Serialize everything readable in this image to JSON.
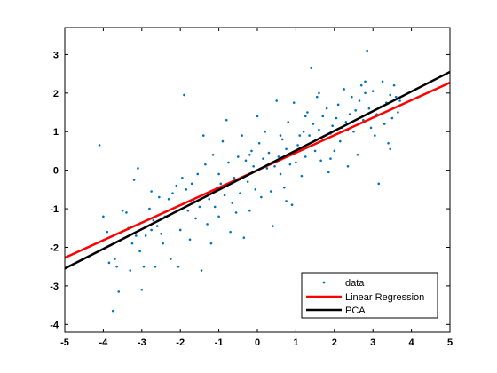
{
  "chart_data": {
    "type": "scatter",
    "title": "",
    "xlabel": "",
    "ylabel": "",
    "xlim": [
      -5,
      5
    ],
    "ylim": [
      -4.2,
      3.7
    ],
    "xticks": [
      -5,
      -4,
      -3,
      -2,
      -1,
      0,
      1,
      2,
      3,
      4,
      5
    ],
    "yticks": [
      -4,
      -3,
      -2,
      -1,
      0,
      1,
      2,
      3
    ],
    "grid": false,
    "legend_position": "bottom-right",
    "series": [
      {
        "name": "data",
        "kind": "scatter",
        "color": "#0072BD",
        "points": [
          [
            -4.1,
            0.65
          ],
          [
            -4.0,
            -1.2
          ],
          [
            -3.9,
            -1.6
          ],
          [
            -3.85,
            -2.4
          ],
          [
            -3.75,
            -3.65
          ],
          [
            -3.7,
            -2.3
          ],
          [
            -3.65,
            -2.5
          ],
          [
            -3.6,
            -3.15
          ],
          [
            -3.5,
            -1.05
          ],
          [
            -3.4,
            -1.1
          ],
          [
            -3.35,
            -1.5
          ],
          [
            -3.3,
            -2.6
          ],
          [
            -3.25,
            -1.9
          ],
          [
            -3.2,
            -0.25
          ],
          [
            -3.15,
            -1.7
          ],
          [
            -3.1,
            0.05
          ],
          [
            -3.05,
            -2.1
          ],
          [
            -3.0,
            -3.1
          ],
          [
            -2.95,
            -2.5
          ],
          [
            -2.9,
            -1.7
          ],
          [
            -2.8,
            -1.0
          ],
          [
            -2.75,
            -1.55
          ],
          [
            -2.7,
            -1.3
          ],
          [
            -2.65,
            -2.5
          ],
          [
            -2.6,
            -1.45
          ],
          [
            -2.55,
            -0.7
          ],
          [
            -2.5,
            -1.65
          ],
          [
            -2.45,
            -1.9
          ],
          [
            -2.4,
            -1.2
          ],
          [
            -2.3,
            -0.75
          ],
          [
            -2.25,
            -2.3
          ],
          [
            -2.2,
            -0.6
          ],
          [
            -2.1,
            -0.4
          ],
          [
            -2.05,
            -2.5
          ],
          [
            -2.0,
            -1.55
          ],
          [
            -1.95,
            -0.2
          ],
          [
            -1.9,
            1.95
          ],
          [
            -1.85,
            -0.5
          ],
          [
            -1.8,
            -1.05
          ],
          [
            -1.75,
            -1.8
          ],
          [
            -1.7,
            -0.35
          ],
          [
            -1.65,
            -0.8
          ],
          [
            -1.6,
            -1.25
          ],
          [
            -1.55,
            -0.1
          ],
          [
            -1.5,
            -0.95
          ],
          [
            -1.45,
            -2.6
          ],
          [
            -1.4,
            0.9
          ],
          [
            -1.35,
            0.15
          ],
          [
            -1.3,
            -1.4
          ],
          [
            -1.25,
            -0.75
          ],
          [
            -1.2,
            -1.9
          ],
          [
            -1.15,
            0.4
          ],
          [
            -1.1,
            -0.95
          ],
          [
            -1.05,
            -0.45
          ],
          [
            -1.0,
            -1.2
          ],
          [
            -0.95,
            -0.35
          ],
          [
            -0.9,
            0.75
          ],
          [
            -0.85,
            -0.65
          ],
          [
            -0.8,
            1.3
          ],
          [
            -0.75,
            0.2
          ],
          [
            -0.7,
            -1.6
          ],
          [
            -0.65,
            -0.85
          ],
          [
            -0.6,
            -0.2
          ],
          [
            -0.55,
            -1.1
          ],
          [
            -0.5,
            0.35
          ],
          [
            -0.45,
            -0.6
          ],
          [
            -0.4,
            0.9
          ],
          [
            -0.35,
            -1.75
          ],
          [
            -0.3,
            0.25
          ],
          [
            -0.25,
            -0.3
          ],
          [
            -0.2,
            -1.05
          ],
          [
            -0.15,
            0.5
          ],
          [
            -0.1,
            0.1
          ],
          [
            -0.05,
            -0.5
          ],
          [
            0.0,
            1.4
          ],
          [
            0.05,
            0.7
          ],
          [
            0.1,
            -0.7
          ],
          [
            0.15,
            0.3
          ],
          [
            0.2,
            1.0
          ],
          [
            0.25,
            0.05
          ],
          [
            0.3,
            0.45
          ],
          [
            0.35,
            -0.55
          ],
          [
            0.4,
            -1.45
          ],
          [
            0.45,
            0.1
          ],
          [
            0.5,
            1.8
          ],
          [
            0.55,
            0.35
          ],
          [
            0.6,
            -0.1
          ],
          [
            0.65,
            0.8
          ],
          [
            0.7,
            -0.45
          ],
          [
            0.75,
            0.55
          ],
          [
            0.8,
            1.25
          ],
          [
            0.85,
            0.15
          ],
          [
            0.9,
            -0.9
          ],
          [
            0.95,
            1.75
          ],
          [
            1.0,
            0.2
          ],
          [
            1.05,
            0.65
          ],
          [
            1.1,
            0.9
          ],
          [
            1.15,
            -0.15
          ],
          [
            1.2,
            1.0
          ],
          [
            1.25,
            0.35
          ],
          [
            1.3,
            1.5
          ],
          [
            1.35,
            0.9
          ],
          [
            1.4,
            2.65
          ],
          [
            1.45,
            1.2
          ],
          [
            1.5,
            0.5
          ],
          [
            1.55,
            1.9
          ],
          [
            1.6,
            1.05
          ],
          [
            1.65,
            0.25
          ],
          [
            1.7,
            1.4
          ],
          [
            1.75,
            0.8
          ],
          [
            1.8,
            1.6
          ],
          [
            1.85,
            -0.05
          ],
          [
            1.9,
            0.95
          ],
          [
            1.95,
            1.15
          ],
          [
            2.0,
            0.5
          ],
          [
            2.05,
            1.35
          ],
          [
            2.1,
            1.7
          ],
          [
            2.15,
            0.75
          ],
          [
            2.2,
            1.1
          ],
          [
            2.25,
            2.1
          ],
          [
            2.3,
            1.25
          ],
          [
            2.35,
            0.1
          ],
          [
            2.4,
            1.45
          ],
          [
            2.45,
            1.9
          ],
          [
            2.5,
            1.0
          ],
          [
            2.55,
            1.55
          ],
          [
            2.6,
            0.4
          ],
          [
            2.65,
            1.8
          ],
          [
            2.7,
            2.2
          ],
          [
            2.75,
            1.3
          ],
          [
            2.8,
            2.0
          ],
          [
            2.85,
            3.1
          ],
          [
            2.9,
            1.6
          ],
          [
            2.95,
            1.1
          ],
          [
            3.0,
            2.05
          ],
          [
            3.05,
            0.9
          ],
          [
            3.1,
            1.45
          ],
          [
            3.15,
            -0.35
          ],
          [
            3.2,
            1.65
          ],
          [
            3.25,
            2.3
          ],
          [
            3.3,
            1.2
          ],
          [
            3.35,
            1.75
          ],
          [
            3.4,
            0.7
          ],
          [
            3.45,
            1.95
          ],
          [
            3.5,
            1.35
          ],
          [
            3.55,
            2.2
          ],
          [
            3.6,
            1.9
          ],
          [
            3.65,
            1.5
          ],
          [
            3.7,
            1.8
          ],
          [
            1.6,
            2.0
          ],
          [
            2.8,
            2.3
          ],
          [
            3.45,
            0.55
          ],
          [
            0.75,
            -0.8
          ],
          [
            -0.2,
            0.4
          ],
          [
            1.25,
            1.4
          ],
          [
            2.35,
            1.05
          ],
          [
            -2.75,
            -0.55
          ],
          [
            -1.0,
            -0.1
          ],
          [
            0.6,
            0.9
          ],
          [
            1.9,
            0.3
          ]
        ]
      },
      {
        "name": "Linear Regression",
        "kind": "line",
        "color": "#FF0000",
        "x": [
          -5,
          5
        ],
        "y": [
          -2.27,
          2.27
        ]
      },
      {
        "name": "PCA",
        "kind": "line",
        "color": "#000000",
        "x": [
          -5,
          5
        ],
        "y": [
          -2.55,
          2.55
        ]
      }
    ]
  }
}
